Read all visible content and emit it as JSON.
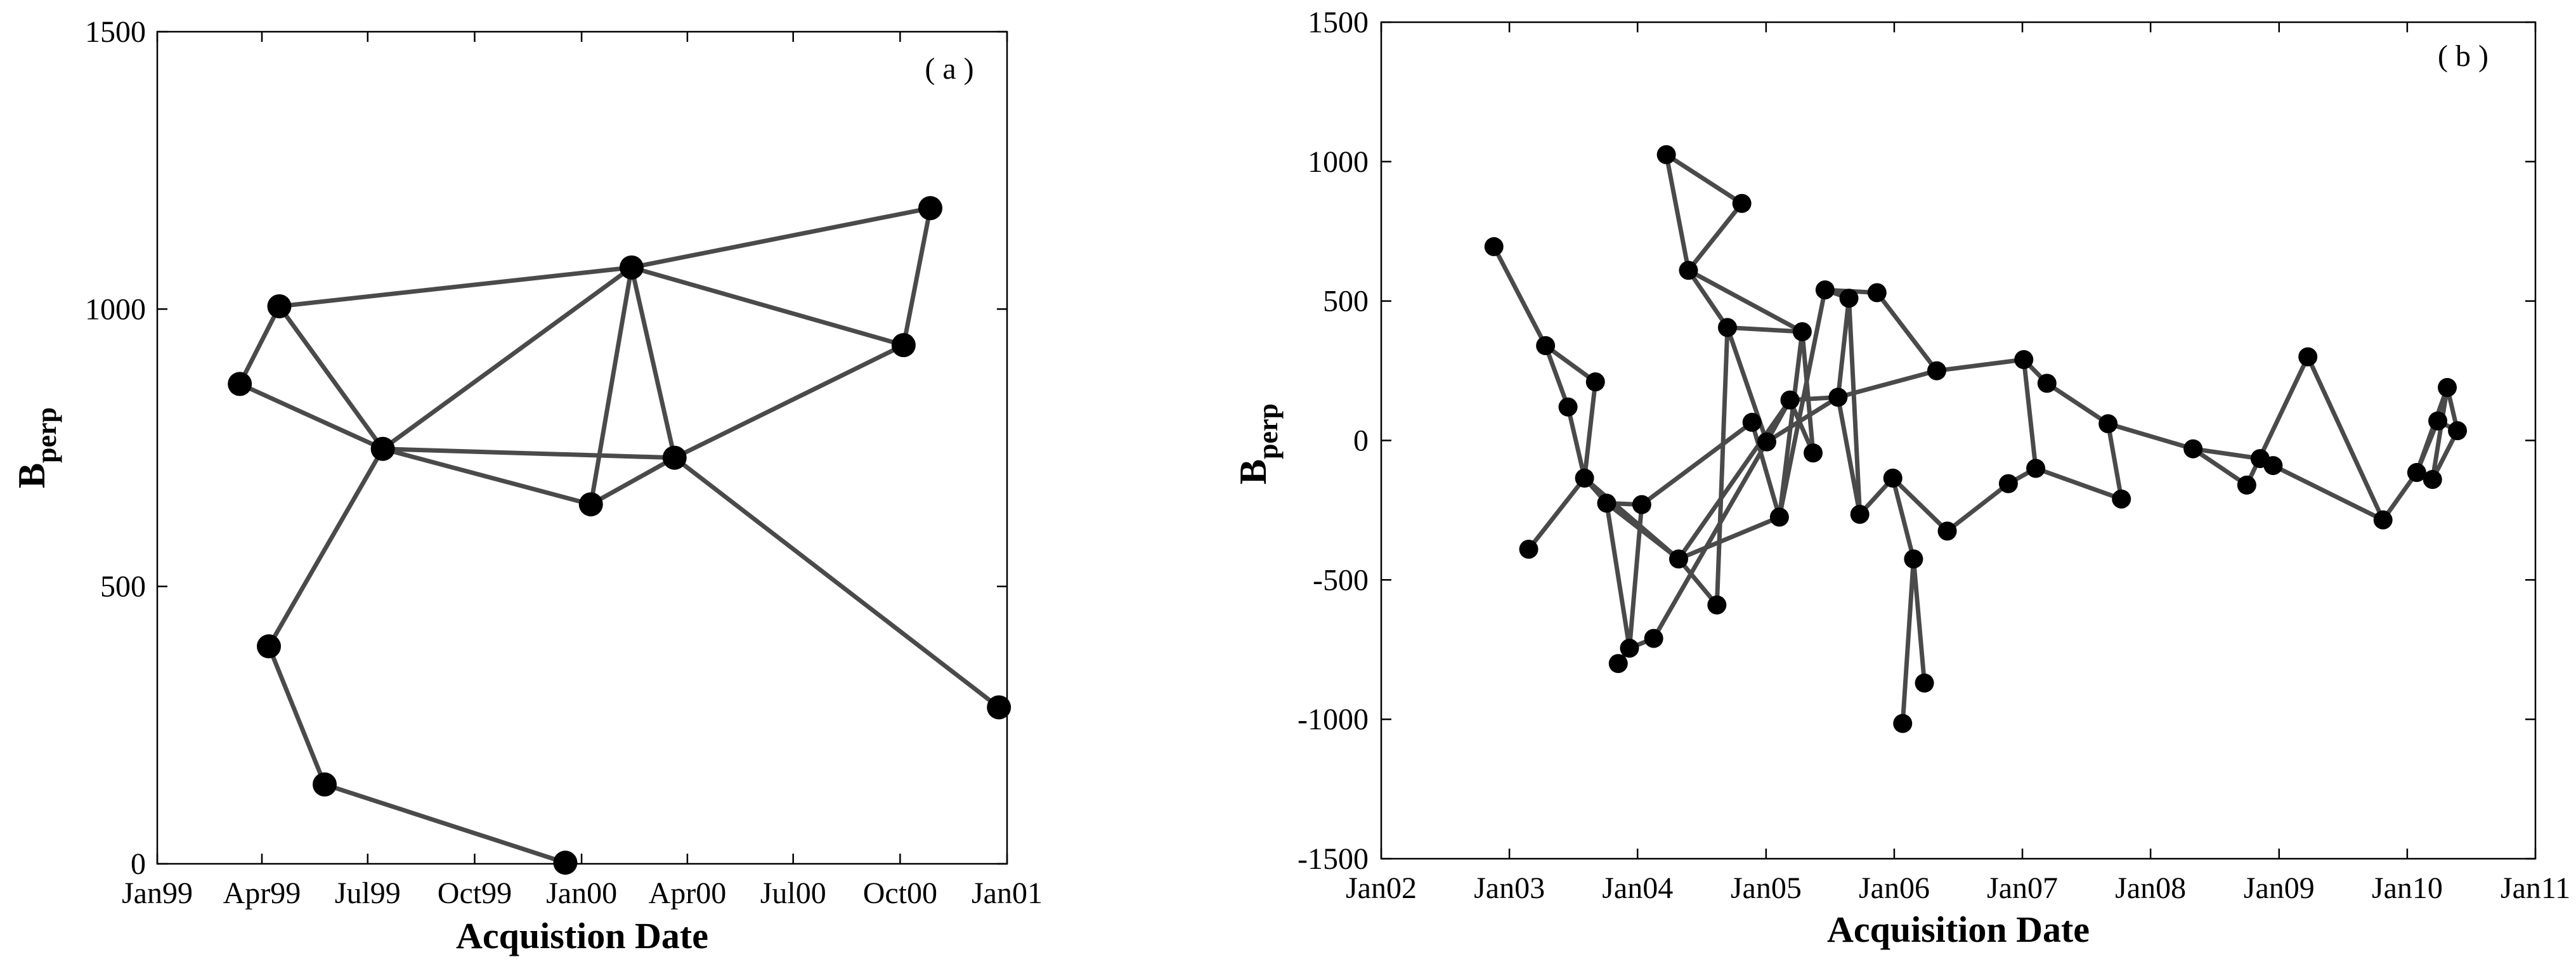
{
  "chart_data": [
    {
      "panel": "(a)",
      "type": "scatter",
      "connections": "baseline network (points joined by lines)",
      "annotation": "( a )",
      "xlabel": "Acquistion Date",
      "ylabel_main": "B",
      "ylabel_sub": "perp",
      "x_scale": "time",
      "xlim": [
        "1999-01-01",
        "2001-01-01"
      ],
      "ylim": [
        0,
        1500
      ],
      "x_ticks": [
        {
          "date": "1999-01-01",
          "label": "Jan99"
        },
        {
          "date": "1999-04-01",
          "label": "Apr99"
        },
        {
          "date": "1999-07-01",
          "label": "Jul99"
        },
        {
          "date": "1999-10-01",
          "label": "Oct99"
        },
        {
          "date": "2000-01-01",
          "label": "Jan00"
        },
        {
          "date": "2000-04-01",
          "label": "Apr00"
        },
        {
          "date": "2000-07-01",
          "label": "Jul00"
        },
        {
          "date": "2000-10-01",
          "label": "Oct00"
        },
        {
          "date": "2001-01-01",
          "label": "Jan01"
        }
      ],
      "y_ticks": [
        0,
        500,
        1000,
        1500
      ],
      "grid": false,
      "point_color": "#000000",
      "line_color": "#4a4a4a",
      "points": [
        {
          "id": "A1",
          "date": "1999-03-13",
          "bperp": 865
        },
        {
          "id": "A2",
          "date": "1999-04-16",
          "bperp": 1005
        },
        {
          "id": "A3",
          "date": "1999-04-07",
          "bperp": 392
        },
        {
          "id": "A4",
          "date": "1999-05-25",
          "bperp": 143
        },
        {
          "id": "A5",
          "date": "1999-07-14",
          "bperp": 748
        },
        {
          "id": "A6",
          "date": "1999-12-18",
          "bperp": 2
        },
        {
          "id": "A7",
          "date": "2000-01-09",
          "bperp": 648
        },
        {
          "id": "A8",
          "date": "2000-02-13",
          "bperp": 1075
        },
        {
          "id": "A9",
          "date": "2000-03-21",
          "bperp": 732
        },
        {
          "id": "A10",
          "date": "2000-10-04",
          "bperp": 935
        },
        {
          "id": "A11",
          "date": "2000-10-27",
          "bperp": 1182
        },
        {
          "id": "A12",
          "date": "2000-12-25",
          "bperp": 282
        }
      ],
      "edges": [
        [
          "A1",
          "A2"
        ],
        [
          "A1",
          "A5"
        ],
        [
          "A2",
          "A5"
        ],
        [
          "A2",
          "A8"
        ],
        [
          "A5",
          "A8"
        ],
        [
          "A5",
          "A9"
        ],
        [
          "A5",
          "A7"
        ],
        [
          "A5",
          "A3"
        ],
        [
          "A3",
          "A4"
        ],
        [
          "A4",
          "A6"
        ],
        [
          "A8",
          "A7"
        ],
        [
          "A8",
          "A9"
        ],
        [
          "A7",
          "A9"
        ],
        [
          "A8",
          "A11"
        ],
        [
          "A8",
          "A10"
        ],
        [
          "A10",
          "A11"
        ],
        [
          "A9",
          "A10"
        ],
        [
          "A9",
          "A12"
        ]
      ]
    },
    {
      "panel": "(b)",
      "type": "scatter",
      "connections": "baseline network (points joined by lines)",
      "annotation": "( b )",
      "xlabel": "Acquisition Date",
      "ylabel_main": "B",
      "ylabel_sub": "perp",
      "x_scale": "time",
      "xlim": [
        "2002-01-01",
        "2011-01-01"
      ],
      "ylim": [
        -1500,
        1500
      ],
      "x_ticks": [
        {
          "date": "2002-01-01",
          "label": "Jan02"
        },
        {
          "date": "2003-01-01",
          "label": "Jan03"
        },
        {
          "date": "2004-01-01",
          "label": "Jan04"
        },
        {
          "date": "2005-01-01",
          "label": "Jan05"
        },
        {
          "date": "2006-01-01",
          "label": "Jan06"
        },
        {
          "date": "2007-01-01",
          "label": "Jan07"
        },
        {
          "date": "2008-01-01",
          "label": "Jan08"
        },
        {
          "date": "2009-01-01",
          "label": "Jan09"
        },
        {
          "date": "2010-01-01",
          "label": "Jan10"
        },
        {
          "date": "2011-01-01",
          "label": "Jan11"
        }
      ],
      "y_ticks": [
        -1500,
        -1000,
        -500,
        0,
        500,
        1000,
        1500
      ],
      "grid": false,
      "point_color": "#000000",
      "line_color": "#4a4a4a",
      "points": [
        {
          "id": "B1",
          "date": "2002-11-18",
          "bperp": 695
        },
        {
          "id": "B2",
          "date": "2003-02-25",
          "bperp": -390
        },
        {
          "id": "B3",
          "date": "2003-04-14",
          "bperp": 340
        },
        {
          "id": "B4",
          "date": "2003-06-17",
          "bperp": 120
        },
        {
          "id": "B5",
          "date": "2003-08-03",
          "bperp": -135
        },
        {
          "id": "B6",
          "date": "2003-09-03",
          "bperp": 210
        },
        {
          "id": "B7",
          "date": "2003-10-05",
          "bperp": -225
        },
        {
          "id": "B8",
          "date": "2003-11-07",
          "bperp": -800
        },
        {
          "id": "B9",
          "date": "2003-12-09",
          "bperp": -745
        },
        {
          "id": "B10",
          "date": "2004-01-13",
          "bperp": -230
        },
        {
          "id": "B11",
          "date": "2004-02-16",
          "bperp": -710
        },
        {
          "id": "B12",
          "date": "2004-03-23",
          "bperp": 1025
        },
        {
          "id": "B13",
          "date": "2004-04-27",
          "bperp": -425
        },
        {
          "id": "B14",
          "date": "2004-05-25",
          "bperp": 610
        },
        {
          "id": "B15",
          "date": "2004-08-14",
          "bperp": -590
        },
        {
          "id": "B16",
          "date": "2004-09-13",
          "bperp": 405
        },
        {
          "id": "B17",
          "date": "2004-10-24",
          "bperp": 850
        },
        {
          "id": "B18",
          "date": "2004-11-22",
          "bperp": 65
        },
        {
          "id": "B19",
          "date": "2005-01-03",
          "bperp": -5
        },
        {
          "id": "B20",
          "date": "2005-02-08",
          "bperp": -275
        },
        {
          "id": "B21",
          "date": "2005-03-10",
          "bperp": 145
        },
        {
          "id": "B22",
          "date": "2005-04-14",
          "bperp": 390
        },
        {
          "id": "B23",
          "date": "2005-05-15",
          "bperp": -45
        },
        {
          "id": "B24",
          "date": "2005-06-18",
          "bperp": 540
        },
        {
          "id": "B25",
          "date": "2005-07-25",
          "bperp": 155
        },
        {
          "id": "B26",
          "date": "2005-08-25",
          "bperp": 510
        },
        {
          "id": "B27",
          "date": "2005-09-25",
          "bperp": -265
        },
        {
          "id": "B28",
          "date": "2005-11-13",
          "bperp": 530
        },
        {
          "id": "B29",
          "date": "2005-12-28",
          "bperp": -135
        },
        {
          "id": "B30",
          "date": "2006-01-25",
          "bperp": -1015
        },
        {
          "id": "B31",
          "date": "2006-02-25",
          "bperp": -425
        },
        {
          "id": "B32",
          "date": "2006-03-28",
          "bperp": -870
        },
        {
          "id": "B33",
          "date": "2006-05-02",
          "bperp": 250
        },
        {
          "id": "B34",
          "date": "2006-06-01",
          "bperp": -325
        },
        {
          "id": "B35",
          "date": "2006-11-22",
          "bperp": -155
        },
        {
          "id": "B36",
          "date": "2007-01-05",
          "bperp": 290
        },
        {
          "id": "B37",
          "date": "2007-02-08",
          "bperp": -100
        },
        {
          "id": "B38",
          "date": "2007-03-12",
          "bperp": 205
        },
        {
          "id": "B39",
          "date": "2007-09-02",
          "bperp": 60
        },
        {
          "id": "B40",
          "date": "2007-10-10",
          "bperp": -210
        },
        {
          "id": "B41",
          "date": "2008-05-01",
          "bperp": -30
        },
        {
          "id": "B42",
          "date": "2008-10-01",
          "bperp": -160
        },
        {
          "id": "B43",
          "date": "2008-11-08",
          "bperp": -65
        },
        {
          "id": "B44",
          "date": "2008-12-15",
          "bperp": -90
        },
        {
          "id": "B45",
          "date": "2009-03-24",
          "bperp": 300
        },
        {
          "id": "B46",
          "date": "2009-10-24",
          "bperp": -285
        },
        {
          "id": "B47",
          "date": "2010-01-28",
          "bperp": -115
        },
        {
          "id": "B48",
          "date": "2010-03-14",
          "bperp": -140
        },
        {
          "id": "B49",
          "date": "2010-03-29",
          "bperp": 70
        },
        {
          "id": "B50",
          "date": "2010-04-25",
          "bperp": 190
        },
        {
          "id": "B51",
          "date": "2010-05-24",
          "bperp": 35
        }
      ],
      "edges": [
        [
          "B1",
          "B3"
        ],
        [
          "B3",
          "B6"
        ],
        [
          "B3",
          "B4"
        ],
        [
          "B4",
          "B5"
        ],
        [
          "B6",
          "B5"
        ],
        [
          "B2",
          "B5"
        ],
        [
          "B5",
          "B7"
        ],
        [
          "B5",
          "B13"
        ],
        [
          "B7",
          "B9"
        ],
        [
          "B7",
          "B13"
        ],
        [
          "B8",
          "B9"
        ],
        [
          "B9",
          "B10"
        ],
        [
          "B9",
          "B11"
        ],
        [
          "B7",
          "B10"
        ],
        [
          "B10",
          "B18"
        ],
        [
          "B11",
          "B19"
        ],
        [
          "B13",
          "B15"
        ],
        [
          "B13",
          "B20"
        ],
        [
          "B13",
          "B21"
        ],
        [
          "B15",
          "B16"
        ],
        [
          "B12",
          "B14"
        ],
        [
          "B12",
          "B17"
        ],
        [
          "B14",
          "B17"
        ],
        [
          "B14",
          "B22"
        ],
        [
          "B14",
          "B16"
        ],
        [
          "B16",
          "B22"
        ],
        [
          "B16",
          "B19"
        ],
        [
          "B18",
          "B20"
        ],
        [
          "B19",
          "B21"
        ],
        [
          "B19",
          "B25"
        ],
        [
          "B20",
          "B22"
        ],
        [
          "B20",
          "B24"
        ],
        [
          "B21",
          "B23"
        ],
        [
          "B21",
          "B25"
        ],
        [
          "B22",
          "B23"
        ],
        [
          "B24",
          "B26"
        ],
        [
          "B24",
          "B28"
        ],
        [
          "B25",
          "B26"
        ],
        [
          "B25",
          "B27"
        ],
        [
          "B25",
          "B33"
        ],
        [
          "B26",
          "B27"
        ],
        [
          "B28",
          "B33"
        ],
        [
          "B27",
          "B29"
        ],
        [
          "B29",
          "B31"
        ],
        [
          "B29",
          "B34"
        ],
        [
          "B31",
          "B32"
        ],
        [
          "B30",
          "B31"
        ],
        [
          "B33",
          "B36"
        ],
        [
          "B34",
          "B35"
        ],
        [
          "B35",
          "B37"
        ],
        [
          "B36",
          "B37"
        ],
        [
          "B36",
          "B38"
        ],
        [
          "B37",
          "B40"
        ],
        [
          "B38",
          "B39"
        ],
        [
          "B39",
          "B40"
        ],
        [
          "B39",
          "B41"
        ],
        [
          "B41",
          "B42"
        ],
        [
          "B41",
          "B43"
        ],
        [
          "B42",
          "B45"
        ],
        [
          "B43",
          "B44"
        ],
        [
          "B44",
          "B46"
        ],
        [
          "B45",
          "B46"
        ],
        [
          "B46",
          "B47"
        ],
        [
          "B47",
          "B49"
        ],
        [
          "B47",
          "B50"
        ],
        [
          "B48",
          "B51"
        ],
        [
          "B49",
          "B51"
        ],
        [
          "B50",
          "B51"
        ],
        [
          "B48",
          "B50"
        ]
      ]
    }
  ]
}
